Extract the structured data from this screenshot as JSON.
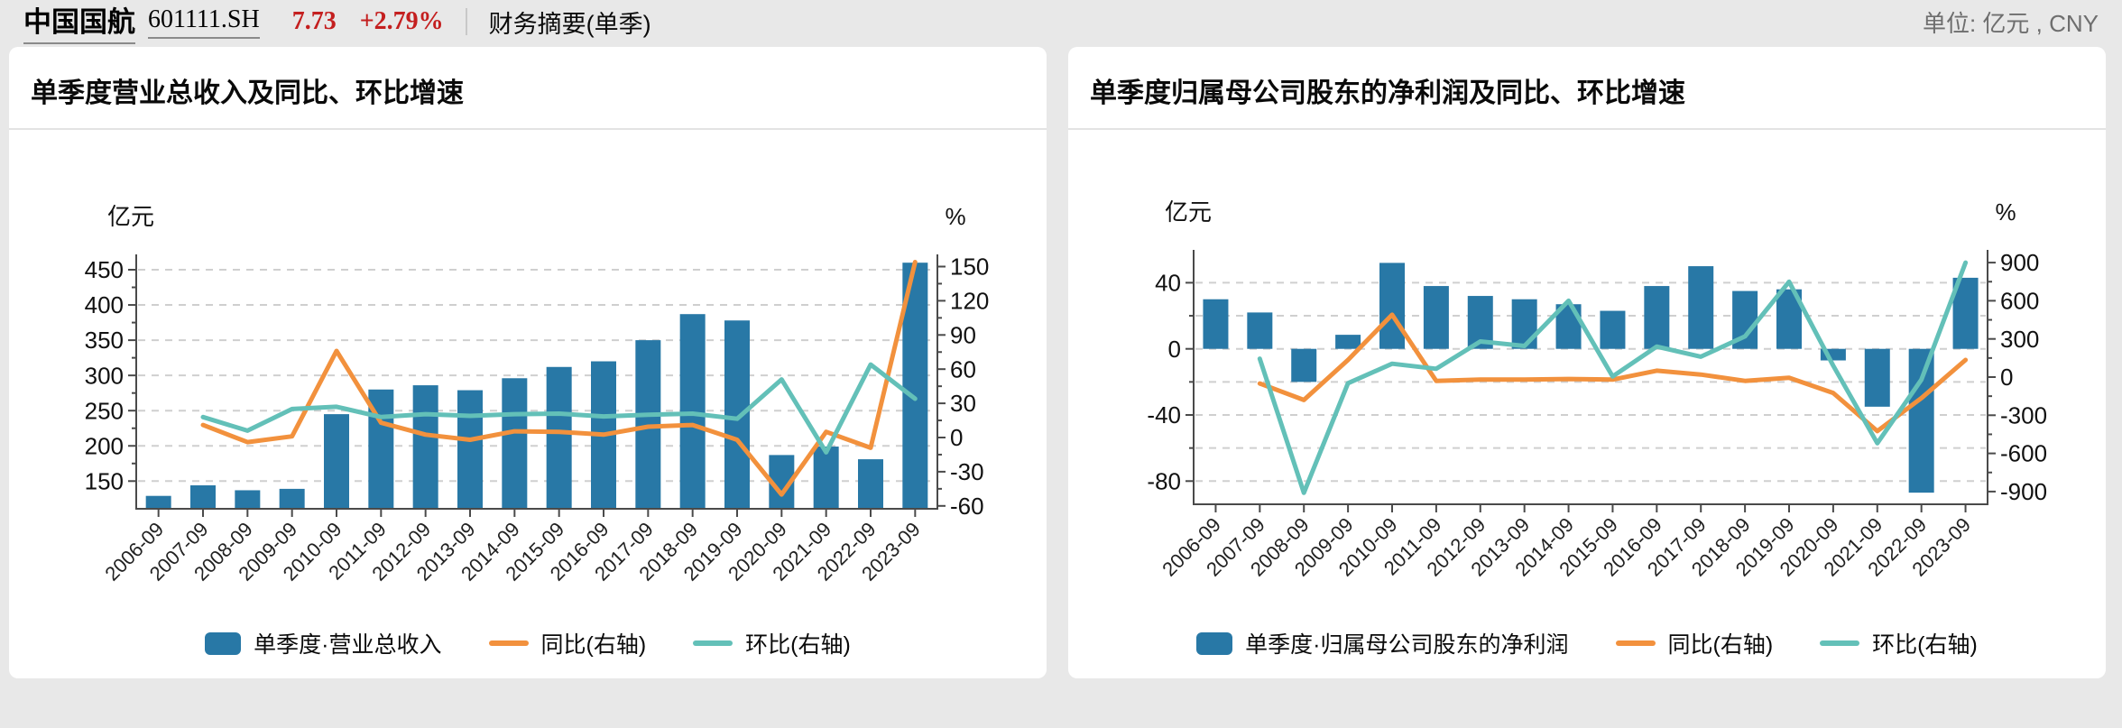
{
  "header": {
    "stock_name": "中国国航",
    "stock_code": "601111.SH",
    "price": "7.73",
    "change_pct": "+2.79%",
    "report_label": "财务摘要(单季)",
    "unit_label": "单位: 亿元 , CNY"
  },
  "colors": {
    "bar": "#2878a6",
    "yoy_line": "#f2913d",
    "qoq_line": "#63c0b8",
    "grid": "#cfcfcf",
    "axis": "#4a4a4a",
    "price_red": "#c41f1f"
  },
  "chart_data": [
    {
      "type": "bar",
      "title": "单季度营业总收入及同比、环比增速",
      "categories": [
        "2006-09",
        "2007-09",
        "2008-09",
        "2009-09",
        "2010-09",
        "2011-09",
        "2012-09",
        "2013-09",
        "2014-09",
        "2015-09",
        "2016-09",
        "2017-09",
        "2018-09",
        "2019-09",
        "2020-09",
        "2021-09",
        "2022-09",
        "2023-09"
      ],
      "series": [
        {
          "name": "单季度·营业总收入",
          "type": "bar",
          "axis": "left",
          "unit": "亿元",
          "values": [
            129,
            144,
            137,
            139,
            245,
            280,
            286,
            279,
            296,
            312,
            320,
            350,
            387,
            378,
            187,
            199,
            181,
            460
          ]
        },
        {
          "name": "同比(右轴)",
          "type": "line",
          "axis": "right",
          "unit": "%",
          "values": [
            null,
            11,
            -4,
            1,
            76,
            13,
            2.5,
            -2,
            5.5,
            5,
            2.5,
            9.5,
            11,
            -2,
            -50,
            5,
            -9,
            154
          ]
        },
        {
          "name": "环比(右轴)",
          "type": "line",
          "axis": "right",
          "unit": "%",
          "values": [
            null,
            18,
            6,
            25,
            27,
            18,
            20.5,
            19,
            20.5,
            21,
            18.5,
            20,
            21,
            16.5,
            51,
            -13,
            64,
            34
          ]
        }
      ],
      "left_axis": {
        "name": "亿元",
        "ticks": [
          450,
          400,
          350,
          300,
          250,
          200,
          150
        ],
        "grid": [
          450,
          400,
          350,
          300,
          250,
          200,
          150
        ],
        "range": [
          111,
          472
        ]
      },
      "right_axis": {
        "name": "%",
        "ticks": [
          150,
          120,
          90,
          60,
          30,
          0,
          -30,
          -60
        ],
        "range": [
          -65,
          161
        ]
      },
      "grid_style": "dashed horizontal",
      "legend_position": "bottom"
    },
    {
      "type": "bar",
      "title": "单季度归属母公司股东的净利润及同比、环比增速",
      "categories": [
        "2006-09",
        "2007-09",
        "2008-09",
        "2009-09",
        "2010-09",
        "2011-09",
        "2012-09",
        "2013-09",
        "2014-09",
        "2015-09",
        "2016-09",
        "2017-09",
        "2018-09",
        "2019-09",
        "2020-09",
        "2021-09",
        "2022-09",
        "2023-09"
      ],
      "series": [
        {
          "name": "单季度·归属母公司股东的净利润",
          "type": "bar",
          "axis": "left",
          "unit": "亿元",
          "values": [
            30,
            22,
            -20,
            8.5,
            52,
            38,
            32,
            30,
            27,
            23,
            38,
            50,
            35,
            36,
            -7,
            -35,
            -87,
            43
          ]
        },
        {
          "name": "同比(右轴)",
          "type": "line",
          "axis": "right",
          "unit": "%",
          "values": [
            null,
            -50,
            -180,
            135,
            490,
            -30,
            -20,
            -20,
            -15,
            -20,
            50,
            20,
            -30,
            -5,
            -125,
            -425,
            -165,
            135
          ]
        },
        {
          "name": "环比(右轴)",
          "type": "line",
          "axis": "right",
          "unit": "%",
          "values": [
            null,
            145,
            -910,
            -48,
            105,
            65,
            280,
            245,
            600,
            5,
            240,
            160,
            320,
            750,
            90,
            -520,
            -20,
            900
          ]
        }
      ],
      "left_axis": {
        "name": "亿元",
        "ticks": [
          40,
          0,
          -40,
          -80
        ],
        "grid": [
          40,
          20,
          0,
          -20,
          -40,
          -60,
          -80
        ],
        "range": [
          -94,
          60
        ]
      },
      "right_axis": {
        "name": "%",
        "ticks": [
          900,
          600,
          300,
          0,
          -300,
          -600,
          -900
        ],
        "range": [
          -1000,
          1000
        ]
      },
      "grid_style": "dashed horizontal",
      "legend_position": "bottom"
    }
  ]
}
